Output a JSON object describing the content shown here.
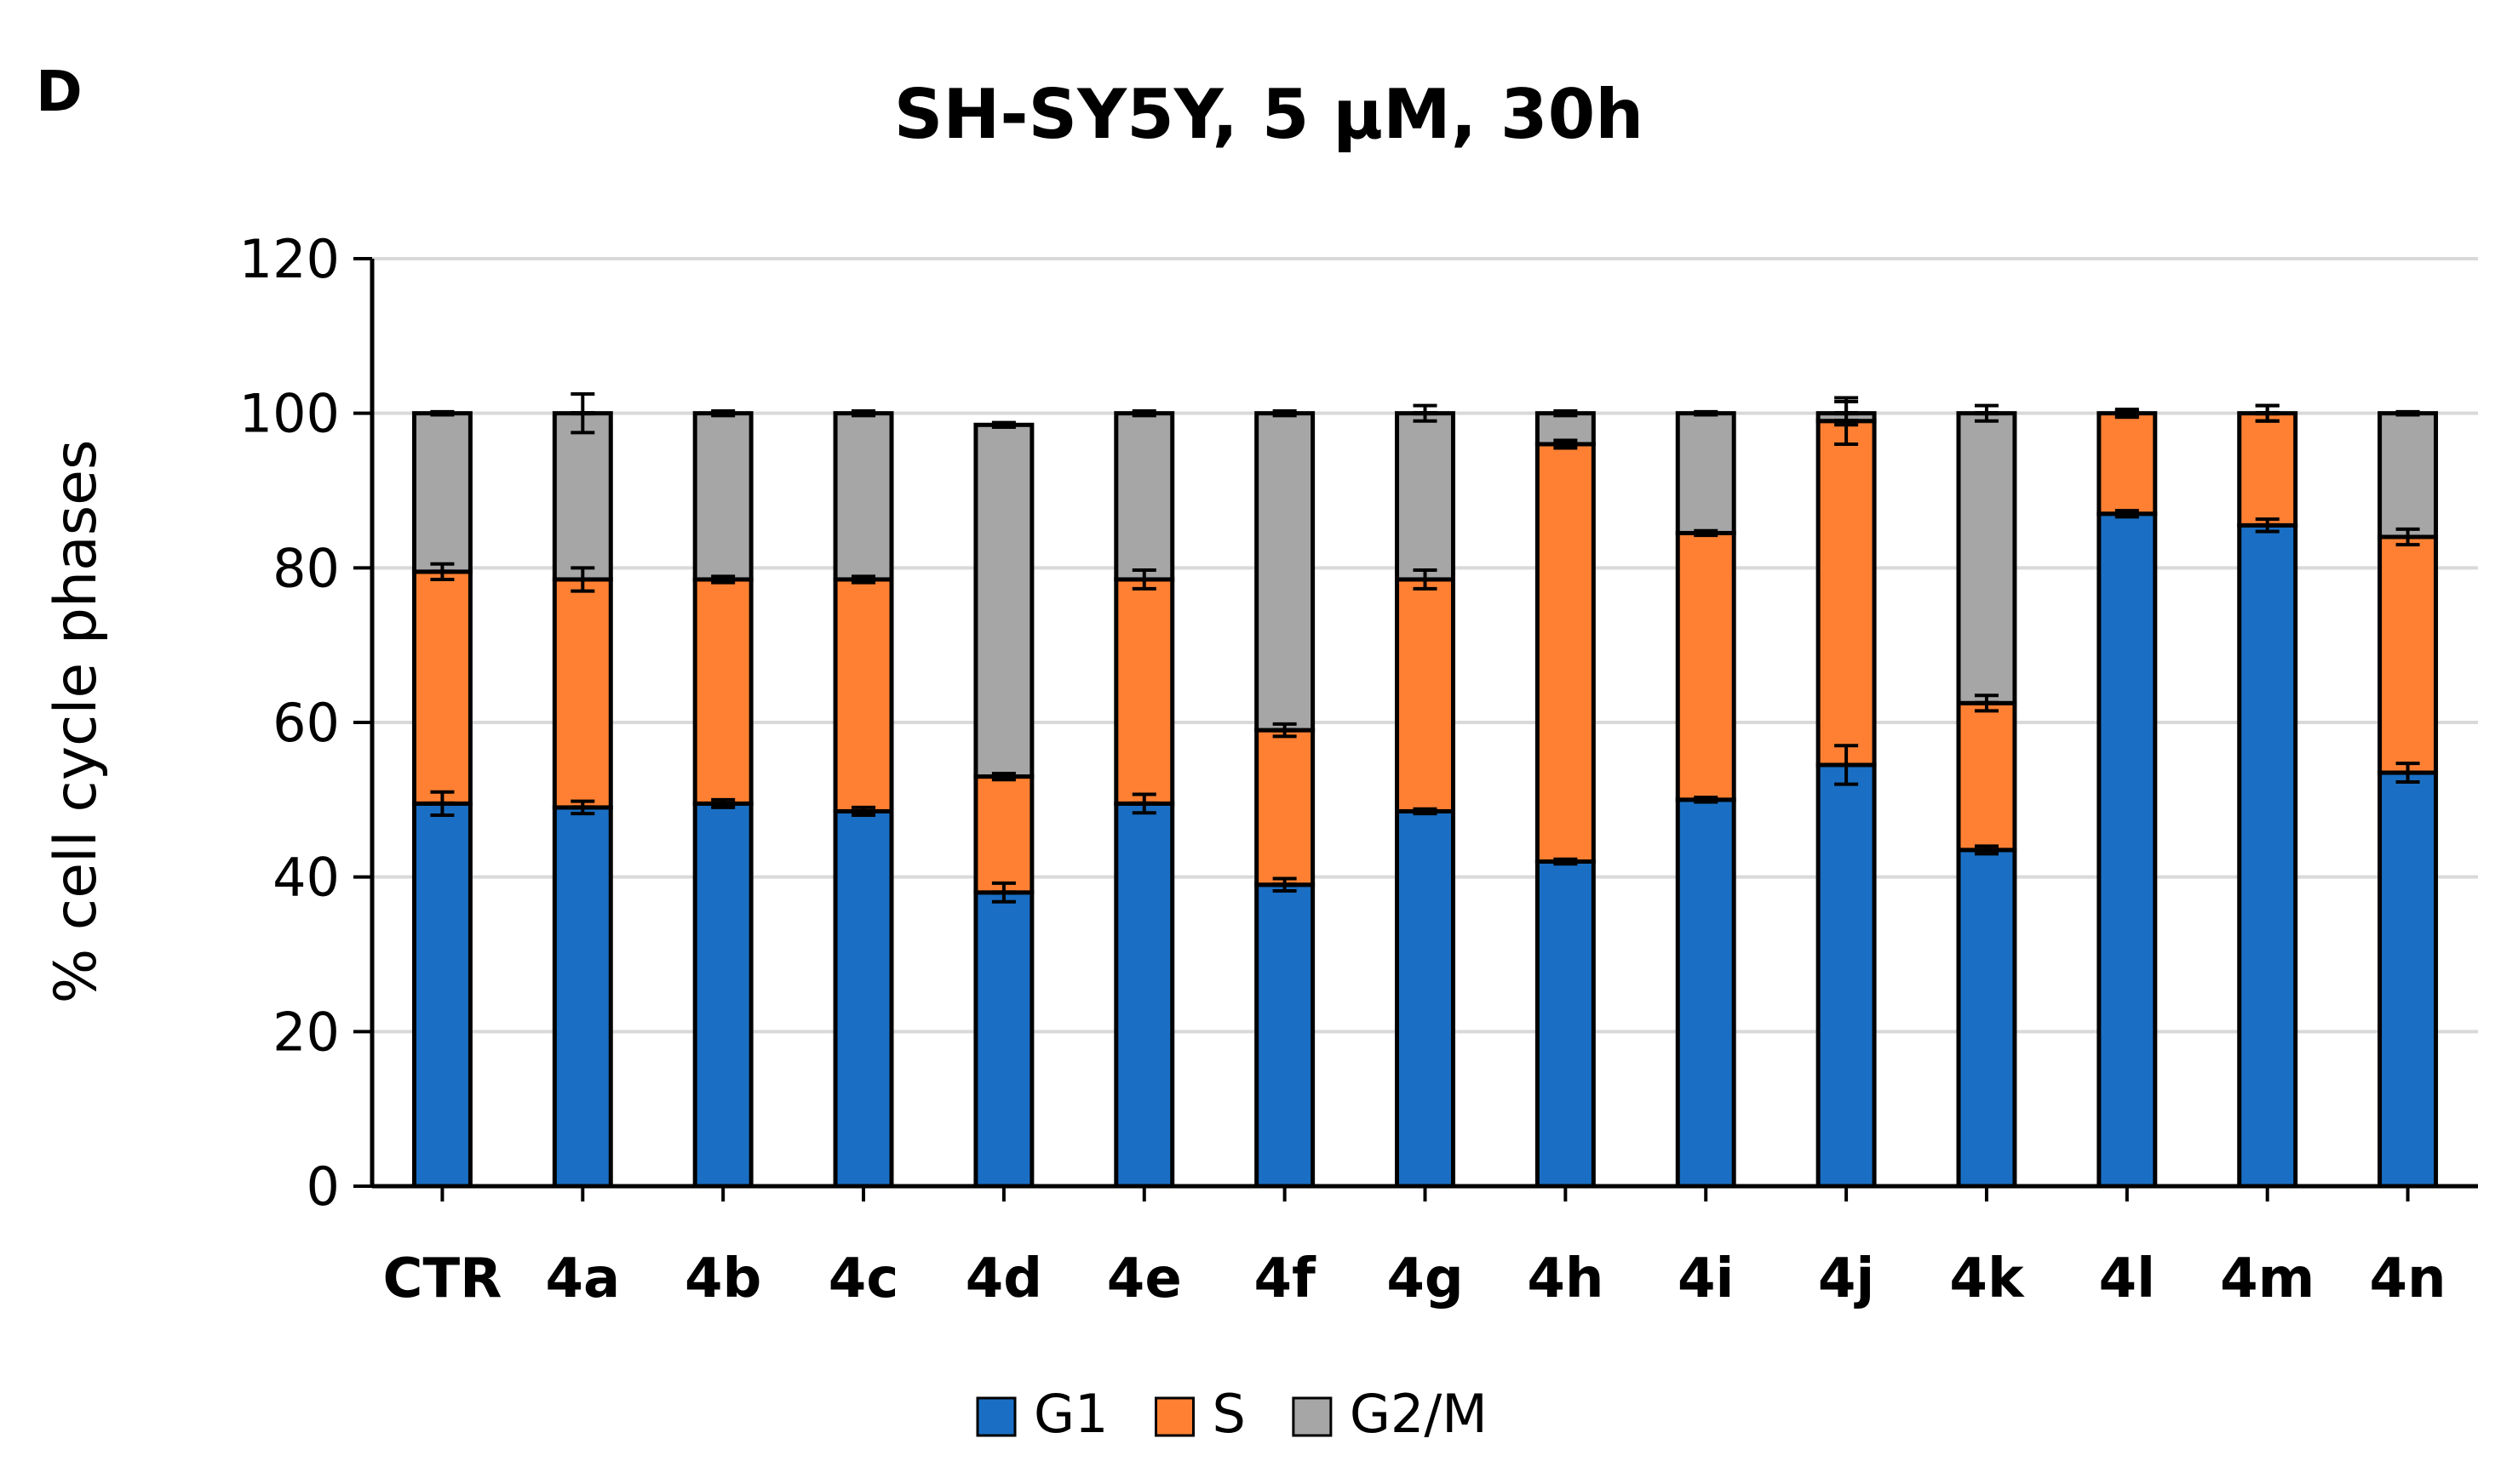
{
  "panel_label": "D",
  "chart_data": {
    "type": "bar",
    "stacked": true,
    "title": "SH-SY5Y, 5 µM, 30h",
    "xlabel": "",
    "ylabel": "% cell cycle phases",
    "ylim": [
      0,
      120
    ],
    "yticks": [
      0,
      20,
      40,
      60,
      80,
      100,
      120
    ],
    "grid": true,
    "legend_position": "bottom-center",
    "categories": [
      "CTR",
      "4a",
      "4b",
      "4c",
      "4d",
      "4e",
      "4f",
      "4g",
      "4h",
      "4i",
      "4j",
      "4k",
      "4l",
      "4m",
      "4n"
    ],
    "series": [
      {
        "name": "G1",
        "color": "#1a6fc4",
        "values": [
          49.5,
          49,
          49.5,
          48.5,
          38,
          49.5,
          39,
          48.5,
          42,
          50,
          54.5,
          43.5,
          87,
          85.5,
          53.5
        ],
        "errors": [
          1.5,
          0.8,
          0.5,
          0.5,
          1.2,
          1.2,
          0.8,
          0.3,
          0.3,
          0.3,
          2.5,
          0.5,
          0.4,
          0.8,
          1.2
        ]
      },
      {
        "name": "S",
        "color": "#ff8032",
        "values": [
          30,
          29.5,
          29,
          30,
          15,
          29,
          20,
          30,
          54,
          34.5,
          44.5,
          19,
          13,
          14.5,
          30.5
        ],
        "errors": [
          1,
          1.5,
          0.4,
          0.4,
          0.4,
          1.2,
          0.8,
          1.2,
          0.5,
          0.3,
          3,
          1,
          0.5,
          1,
          1
        ]
      },
      {
        "name": "G2/M",
        "color": "#a6a6a6",
        "values": [
          20.5,
          21.5,
          21.5,
          21.5,
          45.5,
          21.5,
          41,
          21.5,
          4,
          15.5,
          1,
          37.5,
          0,
          0,
          16
        ],
        "errors": [
          0.2,
          2.5,
          0.3,
          0.3,
          0.3,
          0.3,
          0.3,
          1,
          0.3,
          0.2,
          1.5,
          1,
          0.3,
          1,
          0.2
        ]
      }
    ]
  }
}
